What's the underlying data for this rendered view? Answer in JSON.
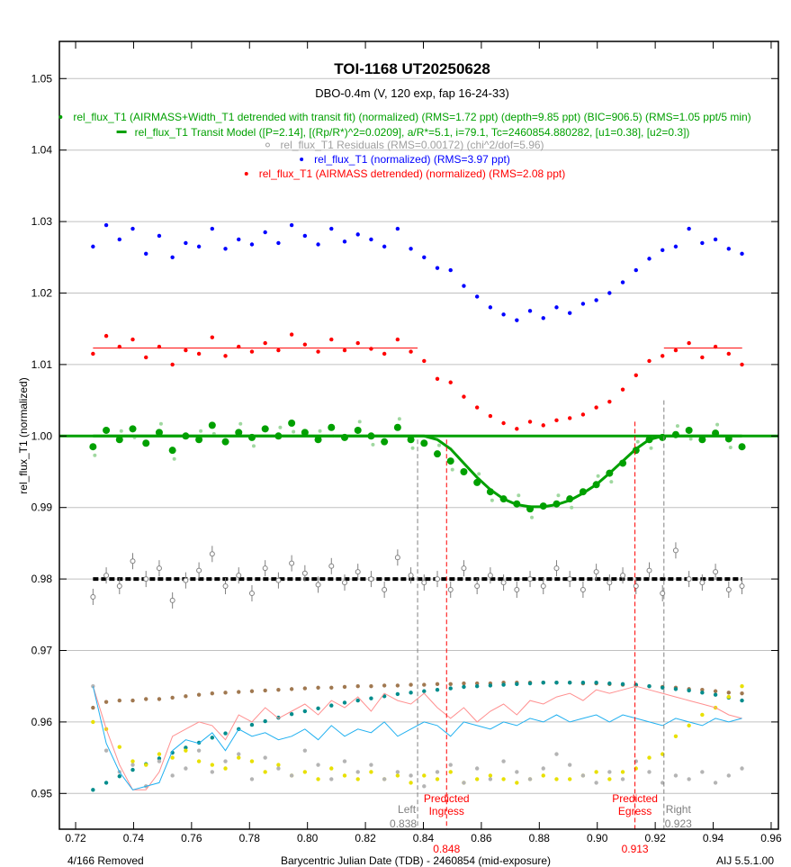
{
  "chart_data": {
    "type": "scatter",
    "title": "TOI-1168  UT20250628",
    "subtitle": "DBO-0.4m (V, 120 exp, fap 16-24-33)",
    "xlabel": "Barycentric Julian Date (TDB) - 2460854 (mid-exposure)",
    "ylabel": "rel_flux_T1 (normalized)",
    "xlim": [
      0.7144,
      0.9625
    ],
    "ylim": [
      0.945,
      1.0552
    ],
    "grid": true,
    "x_ticks": [
      "0.72",
      "0.74",
      "0.76",
      "0.78",
      "0.80",
      "0.82",
      "0.84",
      "0.86",
      "0.88",
      "0.90",
      "0.92",
      "0.94",
      "0.96"
    ],
    "y_ticks": [
      "0.95",
      "0.96",
      "0.97",
      "0.98",
      "0.99",
      "1.00",
      "1.01",
      "1.02",
      "1.03",
      "1.04",
      "1.05"
    ],
    "footer_left": "4/166 Removed",
    "footer_right": "AIJ 5.5.1.00",
    "legend": [
      {
        "text": "rel_flux_T1 (AIRMASS+Width_T1 detrended with transit fit) (normalized) (RMS=1.72 ppt) (depth=9.85 ppt) (BIC=906.5) (RMS=1.05 ppt/5 min)",
        "color": "#00a000",
        "symbol": "dot"
      },
      {
        "text": "rel_flux_T1 Transit Model ([P=2.14], [(Rp/R*)^2=0.0209], a/R*=5.1, i=79.1, Tc=2460854.880282, [u1=0.38], [u2=0.3])",
        "color": "#00a000",
        "symbol": "dash"
      },
      {
        "text": "rel_flux_T1 Residuals (RMS=0.00172) (chi^2/dof=5.96)",
        "color": "#a0a0a0",
        "symbol": "circle"
      },
      {
        "text": "rel_flux_T1 (normalized) (RMS=3.97 ppt)",
        "color": "#0000ff",
        "symbol": "dot"
      },
      {
        "text": "rel_flux_T1 (AIRMASS detrended) (normalized) (RMS=2.08 ppt)",
        "color": "#ff0000",
        "symbol": "dot"
      }
    ],
    "markers": [
      {
        "label1": "Left",
        "label2": "0.838",
        "x": 0.838,
        "top": 0.9995,
        "color": "#808080"
      },
      {
        "label1": "Predicted",
        "label2": "Ingress",
        "value": "0.848",
        "x": 0.848,
        "top": 0.9995,
        "color": "#ff0000"
      },
      {
        "label1": "Predicted",
        "label2": "Egress",
        "value": "0.913",
        "x": 0.913,
        "top": 1.002,
        "color": "#ff0000"
      },
      {
        "label1": "Right",
        "label2": "0.923",
        "x": 0.923,
        "top": 1.005,
        "color": "#808080"
      }
    ],
    "x_start": 0.726,
    "x_step": 0.00457,
    "series": [
      {
        "name": "normalized",
        "color": "#0000ff",
        "style": "dot",
        "values": [
          1.0265,
          1.0295,
          1.0275,
          1.029,
          1.0255,
          1.028,
          1.025,
          1.027,
          1.0265,
          1.029,
          1.0262,
          1.0275,
          1.0268,
          1.0285,
          1.027,
          1.0295,
          1.028,
          1.0268,
          1.029,
          1.0272,
          1.0282,
          1.0275,
          1.0265,
          1.029,
          1.0262,
          1.025,
          1.0235,
          1.0232,
          1.021,
          1.0195,
          1.018,
          1.017,
          1.0162,
          1.0175,
          1.0165,
          1.018,
          1.0172,
          1.0185,
          1.019,
          1.02,
          1.0215,
          1.0232,
          1.0248,
          1.026,
          1.0265,
          1.029,
          1.027,
          1.0275,
          1.0262,
          1.0255
        ]
      },
      {
        "name": "airmass_detrended",
        "color": "#ff0000",
        "style": "dot",
        "values": [
          1.0115,
          1.014,
          1.0125,
          1.0135,
          1.011,
          1.0125,
          1.01,
          1.012,
          1.0115,
          1.0138,
          1.0112,
          1.0125,
          1.0118,
          1.013,
          1.012,
          1.0142,
          1.0128,
          1.0118,
          1.0135,
          1.012,
          1.013,
          1.0122,
          1.0115,
          1.0135,
          1.0118,
          1.0105,
          1.008,
          1.0075,
          1.0055,
          1.004,
          1.0028,
          1.0018,
          1.001,
          1.002,
          1.0015,
          1.0022,
          1.0025,
          1.003,
          1.004,
          1.0048,
          1.0065,
          1.0085,
          1.0105,
          1.0112,
          1.012,
          1.013,
          1.011,
          1.0125,
          1.0115,
          1.01
        ]
      },
      {
        "name": "detrended_fit",
        "color": "#00a000",
        "style": "bigdot",
        "values": [
          0.9985,
          1.0008,
          0.9995,
          1.001,
          0.999,
          1.0005,
          0.998,
          1.0,
          0.9995,
          1.0015,
          0.9992,
          1.0005,
          0.9998,
          1.001,
          1.0,
          1.0018,
          1.0005,
          0.9995,
          1.0012,
          0.9998,
          1.0008,
          1.0,
          0.9992,
          1.0012,
          0.9995,
          0.999,
          0.9975,
          0.9965,
          0.995,
          0.9935,
          0.9922,
          0.9912,
          0.9905,
          0.9898,
          0.9902,
          0.9905,
          0.9912,
          0.9922,
          0.9932,
          0.9948,
          0.9962,
          0.998,
          0.9995,
          0.9998,
          1.0002,
          1.0008,
          0.9995,
          1.0004,
          0.9996,
          0.9985
        ]
      },
      {
        "name": "transit_model",
        "color": "#00a000",
        "style": "line",
        "values": [
          1,
          1,
          1,
          1,
          1,
          1,
          1,
          1,
          1,
          1,
          1,
          1,
          1,
          1,
          1,
          1,
          1,
          1,
          1,
          1,
          1,
          1,
          1,
          1,
          1,
          1,
          0.9995,
          0.9982,
          0.9962,
          0.9942,
          0.9925,
          0.9912,
          0.9904,
          0.9901,
          0.9901,
          0.9904,
          0.991,
          0.992,
          0.9932,
          0.9948,
          0.9965,
          0.9982,
          0.9995,
          1,
          1,
          1,
          1,
          1,
          1,
          1
        ]
      },
      {
        "name": "residuals",
        "color": "#808080",
        "style": "circle",
        "values": [
          0.9775,
          0.9805,
          0.979,
          0.9825,
          0.98,
          0.9815,
          0.977,
          0.9798,
          0.9812,
          0.9835,
          0.979,
          0.9805,
          0.978,
          0.9815,
          0.9798,
          0.9822,
          0.9808,
          0.9792,
          0.9818,
          0.9795,
          0.981,
          0.98,
          0.9785,
          0.983,
          0.9805,
          0.9795,
          0.98,
          0.9785,
          0.9815,
          0.979,
          0.9805,
          0.9795,
          0.9785,
          0.98,
          0.979,
          0.9815,
          0.98,
          0.9785,
          0.981,
          0.9795,
          0.9805,
          0.979,
          0.9812,
          0.978,
          0.984,
          0.98,
          0.9795,
          0.981,
          0.9785,
          0.979
        ]
      },
      {
        "name": "brown",
        "color": "#a07850",
        "style": "dot",
        "values": [
          0.962,
          0.9628,
          0.963,
          0.963,
          0.9632,
          0.9632,
          0.9634,
          0.9636,
          0.9638,
          0.964,
          0.9641,
          0.9642,
          0.9643,
          0.9644,
          0.9645,
          0.9646,
          0.9647,
          0.9648,
          0.9648,
          0.9649,
          0.965,
          0.965,
          0.9651,
          0.9651,
          0.9652,
          0.9652,
          0.9653,
          0.9653,
          0.9654,
          0.9654,
          0.9654,
          0.9655,
          0.9655,
          0.9655,
          0.9655,
          0.9655,
          0.9655,
          0.9654,
          0.9654,
          0.9653,
          0.9652,
          0.9651,
          0.965,
          0.9649,
          0.9648,
          0.9646,
          0.9645,
          0.9643,
          0.9641,
          0.964
        ]
      },
      {
        "name": "teal",
        "color": "#008c8c",
        "style": "dot",
        "values": [
          0.9505,
          0.9515,
          0.9524,
          0.9533,
          0.9541,
          0.9549,
          0.9557,
          0.9564,
          0.9571,
          0.9578,
          0.9584,
          0.959,
          0.9596,
          0.9601,
          0.9606,
          0.9611,
          0.9615,
          0.9619,
          0.9623,
          0.9627,
          0.963,
          0.9633,
          0.9636,
          0.9639,
          0.9641,
          0.9643,
          0.9645,
          0.9647,
          0.9649,
          0.965,
          0.9651,
          0.9652,
          0.9653,
          0.9654,
          0.9655,
          0.9655,
          0.9655,
          0.9655,
          0.9655,
          0.9654,
          0.9653,
          0.9652,
          0.965,
          0.9648,
          0.9646,
          0.9644,
          0.9641,
          0.9638,
          0.9634,
          0.963
        ]
      },
      {
        "name": "yellow",
        "color": "#e8e000",
        "style": "dot",
        "values": [
          0.96,
          0.959,
          0.9565,
          0.9545,
          0.954,
          0.9555,
          0.955,
          0.956,
          0.9545,
          0.954,
          0.9535,
          0.955,
          0.9545,
          0.953,
          0.954,
          0.9525,
          0.953,
          0.952,
          0.9535,
          0.9525,
          0.952,
          0.953,
          0.952,
          0.9525,
          0.9515,
          0.9525,
          0.952,
          0.953,
          0.9515,
          0.952,
          0.9525,
          0.952,
          0.9515,
          0.952,
          0.9525,
          0.952,
          0.952,
          0.9525,
          0.953,
          0.952,
          0.953,
          0.9535,
          0.955,
          0.9555,
          0.958,
          0.9595,
          0.961,
          0.962,
          0.9635,
          0.965
        ]
      },
      {
        "name": "gray",
        "color": "#b4b4b4",
        "style": "dot",
        "values": [
          0.965,
          0.956,
          0.953,
          0.954,
          0.951,
          0.9545,
          0.9525,
          0.9535,
          0.956,
          0.953,
          0.9545,
          0.9555,
          0.952,
          0.955,
          0.9535,
          0.9525,
          0.956,
          0.954,
          0.952,
          0.9545,
          0.953,
          0.954,
          0.952,
          0.953,
          0.9525,
          0.951,
          0.953,
          0.954,
          0.9515,
          0.9535,
          0.952,
          0.9545,
          0.953,
          0.952,
          0.9535,
          0.9555,
          0.954,
          0.9525,
          0.9515,
          0.953,
          0.952,
          0.9545,
          0.953,
          0.9515,
          0.9525,
          0.952,
          0.953,
          0.9515,
          0.9525,
          0.9535
        ]
      },
      {
        "name": "pink",
        "color": "#ff9090",
        "style": "thinline",
        "values": [
          0.965,
          0.959,
          0.954,
          0.9505,
          0.9505,
          0.953,
          0.958,
          0.959,
          0.96,
          0.9595,
          0.9575,
          0.961,
          0.96,
          0.962,
          0.9605,
          0.9615,
          0.9625,
          0.961,
          0.963,
          0.962,
          0.9635,
          0.9615,
          0.964,
          0.963,
          0.9625,
          0.964,
          0.962,
          0.9605,
          0.962,
          0.96,
          0.9615,
          0.9625,
          0.961,
          0.963,
          0.9625,
          0.9635,
          0.964,
          0.963,
          0.9645,
          0.964,
          0.9645,
          0.965,
          0.9645,
          0.964,
          0.9635,
          0.963,
          0.9625,
          0.962,
          0.961,
          0.9605
        ]
      },
      {
        "name": "cyan",
        "color": "#20b0f0",
        "style": "thinline",
        "values": [
          0.965,
          0.957,
          0.953,
          0.9505,
          0.951,
          0.9515,
          0.956,
          0.9575,
          0.957,
          0.9585,
          0.956,
          0.959,
          0.958,
          0.9585,
          0.9575,
          0.958,
          0.959,
          0.9575,
          0.9595,
          0.958,
          0.959,
          0.9585,
          0.96,
          0.958,
          0.959,
          0.96,
          0.9595,
          0.958,
          0.96,
          0.9595,
          0.959,
          0.96,
          0.9595,
          0.9605,
          0.96,
          0.961,
          0.96,
          0.9605,
          0.961,
          0.96,
          0.961,
          0.9605,
          0.96,
          0.9595,
          0.9605,
          0.96,
          0.9595,
          0.9605,
          0.96,
          0.9605
        ]
      }
    ],
    "baselines": [
      {
        "name": "airmass-fit-left",
        "color": "#ff0000",
        "y": 1.0123,
        "x0": 0.726,
        "x1": 0.838
      },
      {
        "name": "airmass-fit-right",
        "color": "#ff0000",
        "y": 1.0123,
        "x0": 0.923,
        "x1": 0.95
      },
      {
        "name": "model-full",
        "color": "#00a000",
        "y": 1.0,
        "x0": 0.7144,
        "x1": 0.9625
      },
      {
        "name": "residual-model",
        "color": "#000000",
        "y": 0.98,
        "x0": 0.726,
        "x1": 0.95
      }
    ]
  }
}
